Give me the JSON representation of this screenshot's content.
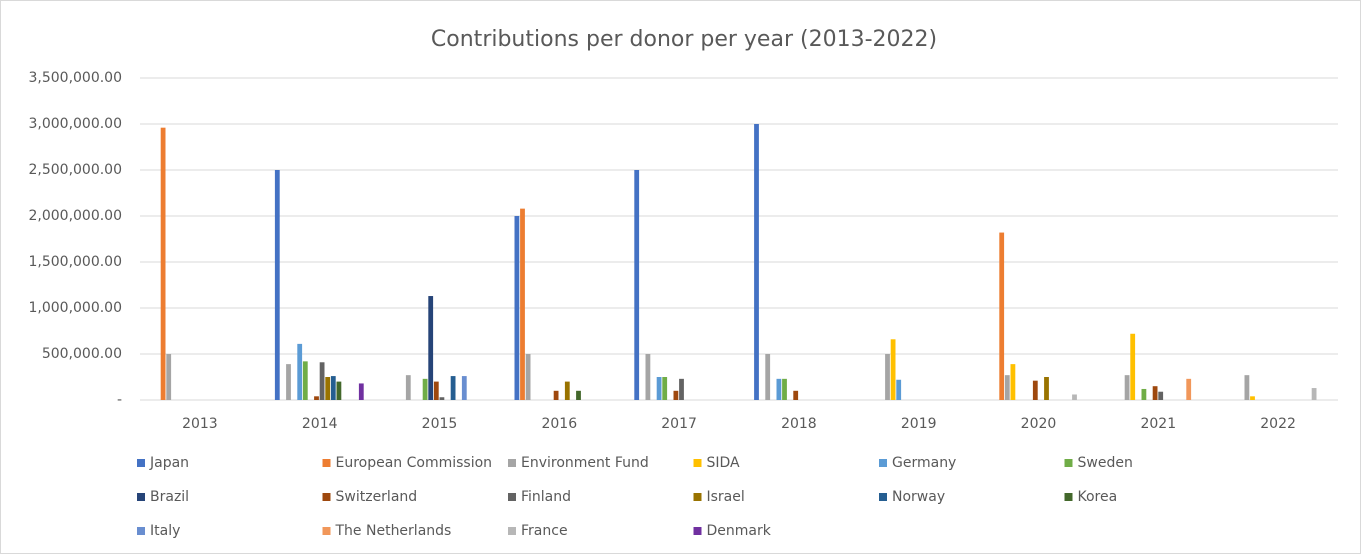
{
  "chart_data": {
    "type": "bar",
    "title": "Contributions per donor per year (2013-2022)",
    "categories": [
      "2013",
      "2014",
      "2015",
      "2016",
      "2017",
      "2018",
      "2019",
      "2020",
      "2021",
      "2022"
    ],
    "ylim": [
      0,
      3500000
    ],
    "yticks": [
      {
        "value": 0,
        "label": "-"
      },
      {
        "value": 500000,
        "label": "500,000.00"
      },
      {
        "value": 1000000,
        "label": "1,000,000.00"
      },
      {
        "value": 1500000,
        "label": "1,500,000.00"
      },
      {
        "value": 2000000,
        "label": "2,000,000.00"
      },
      {
        "value": 2500000,
        "label": "2,500,000.00"
      },
      {
        "value": 3000000,
        "label": "3,000,000.00"
      },
      {
        "value": 3500000,
        "label": "3,500,000.00"
      }
    ],
    "grid": true,
    "legend": "bottom",
    "series": [
      {
        "name": "Japan",
        "color": "#4472c4",
        "values": [
          0,
          2500000,
          0,
          2000000,
          2500000,
          3000000,
          0,
          0,
          0,
          0
        ]
      },
      {
        "name": "European Commission",
        "color": "#ed7d31",
        "values": [
          2960000,
          0,
          0,
          2080000,
          0,
          0,
          0,
          1820000,
          0,
          0
        ]
      },
      {
        "name": "Environment Fund",
        "color": "#a5a5a5",
        "values": [
          500000,
          390000,
          270000,
          500000,
          500000,
          500000,
          500000,
          270000,
          270000,
          270000
        ]
      },
      {
        "name": "SIDA",
        "color": "#ffc000",
        "values": [
          0,
          0,
          0,
          0,
          0,
          0,
          660000,
          390000,
          720000,
          40000
        ]
      },
      {
        "name": "Germany",
        "color": "#5b9bd5",
        "values": [
          0,
          610000,
          0,
          0,
          250000,
          230000,
          220000,
          0,
          0,
          0
        ]
      },
      {
        "name": "Sweden",
        "color": "#70ad47",
        "values": [
          0,
          420000,
          230000,
          0,
          250000,
          230000,
          0,
          0,
          120000,
          0
        ]
      },
      {
        "name": "Brazil",
        "color": "#264478",
        "values": [
          0,
          0,
          1130000,
          0,
          0,
          0,
          0,
          0,
          0,
          0
        ]
      },
      {
        "name": "Switzerland",
        "color": "#9e480e",
        "values": [
          0,
          40000,
          200000,
          100000,
          100000,
          100000,
          0,
          210000,
          150000,
          0
        ]
      },
      {
        "name": "Finland",
        "color": "#636363",
        "values": [
          0,
          410000,
          30000,
          0,
          230000,
          0,
          0,
          0,
          90000,
          0
        ]
      },
      {
        "name": "Israel",
        "color": "#997300",
        "values": [
          0,
          250000,
          0,
          200000,
          0,
          0,
          0,
          250000,
          0,
          0
        ]
      },
      {
        "name": "Norway",
        "color": "#255e91",
        "values": [
          0,
          260000,
          260000,
          0,
          0,
          0,
          0,
          0,
          0,
          0
        ]
      },
      {
        "name": "Korea",
        "color": "#43682b",
        "values": [
          0,
          200000,
          0,
          100000,
          0,
          0,
          0,
          0,
          0,
          0
        ]
      },
      {
        "name": "Italy",
        "color": "#698ed0",
        "values": [
          0,
          0,
          260000,
          0,
          0,
          0,
          0,
          0,
          0,
          0
        ]
      },
      {
        "name": "The Netherlands",
        "color": "#f1975a",
        "values": [
          0,
          0,
          0,
          0,
          0,
          0,
          0,
          0,
          230000,
          0
        ]
      },
      {
        "name": "France",
        "color": "#b7b7b7",
        "values": [
          0,
          0,
          0,
          0,
          0,
          0,
          0,
          60000,
          0,
          130000
        ]
      },
      {
        "name": "Denmark",
        "color": "#7030a0",
        "values": [
          0,
          180000,
          0,
          0,
          0,
          0,
          0,
          0,
          0,
          0
        ]
      }
    ]
  }
}
